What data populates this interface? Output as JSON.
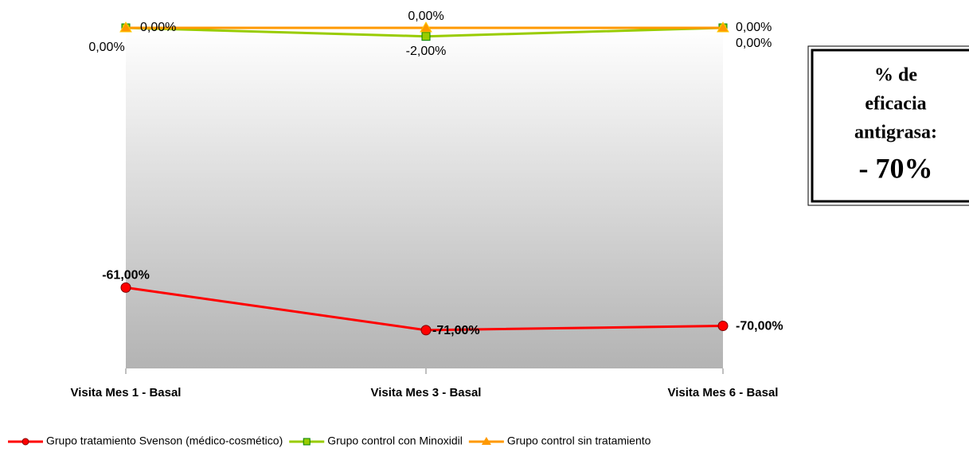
{
  "chart_data": {
    "type": "line",
    "categories": [
      "Visita Mes 1 - Basal",
      "Visita Mes 3 - Basal",
      "Visita Mes 6 - Basal"
    ],
    "series": [
      {
        "name": "Grupo tratamiento Svenson (médico-cosmético)",
        "color": "#ff0000",
        "values": [
          -61,
          -71,
          -70
        ],
        "value_labels": [
          "-61,00%",
          "-71,00%",
          "-70,00%"
        ]
      },
      {
        "name": "Grupo control con Minoxidil",
        "color": "#99cc00",
        "values": [
          0,
          -2,
          0
        ],
        "value_labels": [
          "0,00%",
          "-2,00%",
          "0,00%"
        ]
      },
      {
        "name": "Grupo control sin tratamiento",
        "color": "#ff9900",
        "values": [
          0,
          0,
          0
        ],
        "value_labels": [
          "0,00%",
          "0,00%",
          "0,00%"
        ]
      }
    ],
    "ylim": [
      -80,
      0
    ],
    "annotation": {
      "lines": [
        "% de",
        "eficacia",
        "antigrasa:"
      ],
      "value": "- 70%"
    }
  }
}
